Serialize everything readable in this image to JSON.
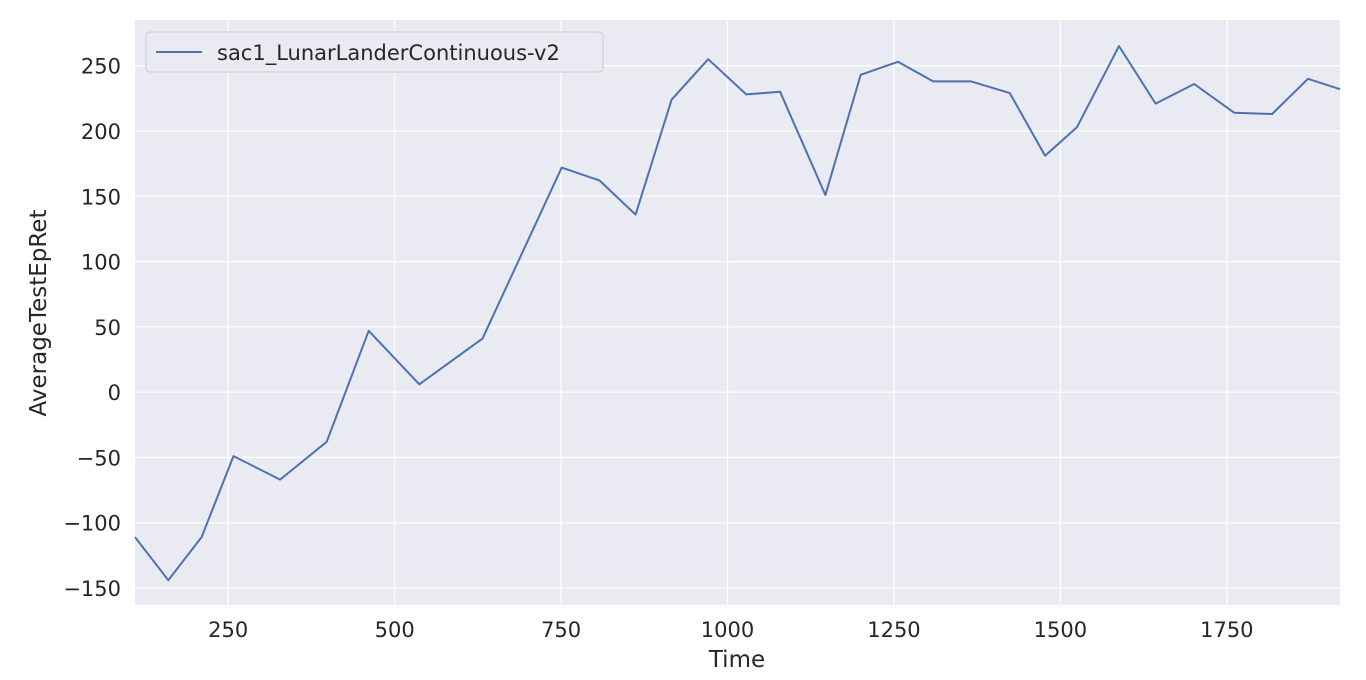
{
  "chart_data": {
    "type": "line",
    "xlabel": "Time",
    "ylabel": "AverageTestEpRet",
    "xlim": [
      110,
      1920
    ],
    "ylim": [
      -163,
      285
    ],
    "xticks": [
      250,
      500,
      750,
      1000,
      1250,
      1500,
      1750
    ],
    "xtick_labels": [
      "250",
      "500",
      "750",
      "1000",
      "1250",
      "1500",
      "1750"
    ],
    "yticks": [
      -150,
      -100,
      -50,
      0,
      50,
      100,
      150,
      200,
      250
    ],
    "ytick_labels": [
      "−150",
      "−100",
      "−50",
      "0",
      "50",
      "100",
      "150",
      "200",
      "250"
    ],
    "grid": true,
    "legend_position": "top-left",
    "colors": {
      "background": "#eaeaf2",
      "grid": "#ffffff",
      "line": "#4c72b0"
    },
    "series": [
      {
        "name": "sac1_LunarLanderContinuous-v2",
        "x": [
          110,
          160,
          210,
          258,
          328,
          398,
          461,
          537,
          632,
          751,
          808,
          862,
          916,
          971,
          1028,
          1079,
          1147,
          1200,
          1256,
          1309,
          1366,
          1424,
          1477,
          1525,
          1588,
          1643,
          1701,
          1761,
          1818,
          1872,
          1920
        ],
        "y": [
          -111,
          -144,
          -111,
          -49,
          -67,
          -38,
          47,
          6,
          41,
          172,
          162,
          136,
          224,
          255,
          228,
          230,
          151,
          243,
          253,
          238,
          238,
          229,
          181,
          203,
          265,
          221,
          236,
          214,
          213,
          240,
          232
        ]
      }
    ]
  }
}
